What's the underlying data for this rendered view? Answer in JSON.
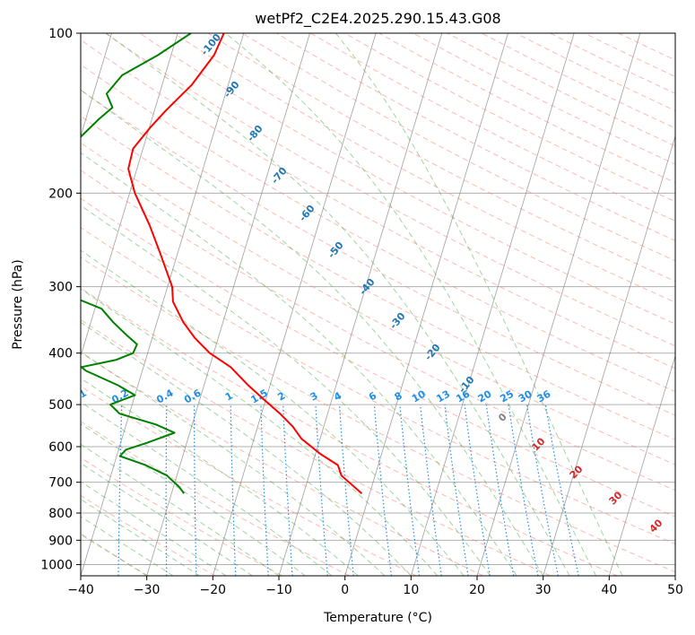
{
  "chart_data": {
    "type": "line",
    "title": "wetPf2_C2E4.2025.290.15.43.G08",
    "xlabel": "Temperature (°C)",
    "ylabel": "Pressure (hPa)",
    "xlim": [
      -40,
      50
    ],
    "ylim": [
      1050,
      100
    ],
    "x_ticks": [
      -40,
      -30,
      -20,
      -10,
      0,
      10,
      20,
      30,
      40,
      50
    ],
    "y_ticks": [
      100,
      200,
      300,
      400,
      500,
      600,
      700,
      800,
      900,
      1000
    ],
    "series": [
      {
        "name": "temperature",
        "color": "#ff0000",
        "points": [
          [
            100,
            -43
          ],
          [
            110,
            -43.5
          ],
          [
            125,
            -45.5
          ],
          [
            140,
            -48.3
          ],
          [
            150,
            -49.8
          ],
          [
            165,
            -51.5
          ],
          [
            180,
            -51.3
          ],
          [
            200,
            -49.2
          ],
          [
            230,
            -45.5
          ],
          [
            260,
            -42.6
          ],
          [
            280,
            -40.9
          ],
          [
            300,
            -39.3
          ],
          [
            320,
            -38.5
          ],
          [
            350,
            -36
          ],
          [
            375,
            -33.5
          ],
          [
            400,
            -30.6
          ],
          [
            425,
            -26.8
          ],
          [
            460,
            -23.3
          ],
          [
            490,
            -20.2
          ],
          [
            520,
            -17.2
          ],
          [
            550,
            -14.7
          ],
          [
            580,
            -12.8
          ],
          [
            620,
            -9.2
          ],
          [
            650,
            -6.1
          ],
          [
            680,
            -5.1
          ],
          [
            735,
            -1.2
          ]
        ]
      },
      {
        "name": "dewpoint",
        "color": "#008000",
        "points": [
          [
            100,
            -48
          ],
          [
            110,
            -52
          ],
          [
            120,
            -56.5
          ],
          [
            130,
            -58
          ],
          [
            138,
            -56.5
          ],
          [
            145,
            -58
          ],
          [
            160,
            -60.5
          ],
          [
            180,
            -61.5
          ],
          [
            200,
            -62.5
          ],
          [
            220,
            -63.8
          ],
          [
            245,
            -64.3
          ],
          [
            265,
            -65.5
          ],
          [
            280,
            -71
          ],
          [
            285,
            -78
          ],
          [
            288,
            -74
          ],
          [
            295,
            -64
          ],
          [
            310,
            -55
          ],
          [
            330,
            -49
          ],
          [
            350,
            -46.6
          ],
          [
            370,
            -44
          ],
          [
            385,
            -42
          ],
          [
            400,
            -42.2
          ],
          [
            412,
            -44.5
          ],
          [
            425,
            -49.4
          ],
          [
            432,
            -48.5
          ],
          [
            460,
            -43
          ],
          [
            480,
            -40
          ],
          [
            500,
            -43.3
          ],
          [
            520,
            -41.5
          ],
          [
            545,
            -35.5
          ],
          [
            565,
            -32.3
          ],
          [
            590,
            -36
          ],
          [
            608,
            -38.9
          ],
          [
            625,
            -39.5
          ],
          [
            650,
            -35.2
          ],
          [
            680,
            -31.5
          ],
          [
            715,
            -29.1
          ],
          [
            735,
            -28.1
          ]
        ]
      }
    ],
    "mixing_ratio_labels": [
      "0.1",
      "0.2",
      "0.4",
      "0.6",
      "1",
      "1.5",
      "2",
      "3",
      "4",
      "6",
      "8",
      "10",
      "13",
      "16",
      "20",
      "25",
      "30",
      "36"
    ],
    "moist_adiabat_labels": [
      "-100",
      "-90",
      "-80",
      "-70",
      "-60",
      "-50",
      "-40",
      "-30",
      "-20",
      "-10"
    ],
    "dry_adiabat_labels": [
      "10",
      "20",
      "30",
      "40"
    ],
    "saturation_label": "0"
  },
  "colors": {
    "temperature": "#ff0000",
    "dewpoint": "#008000",
    "mixing_ratio": "#1f8ee6",
    "dry_adiabat": "#fa8072",
    "moist_adiabat": "#2ca02c",
    "isotherm": "#808080"
  }
}
